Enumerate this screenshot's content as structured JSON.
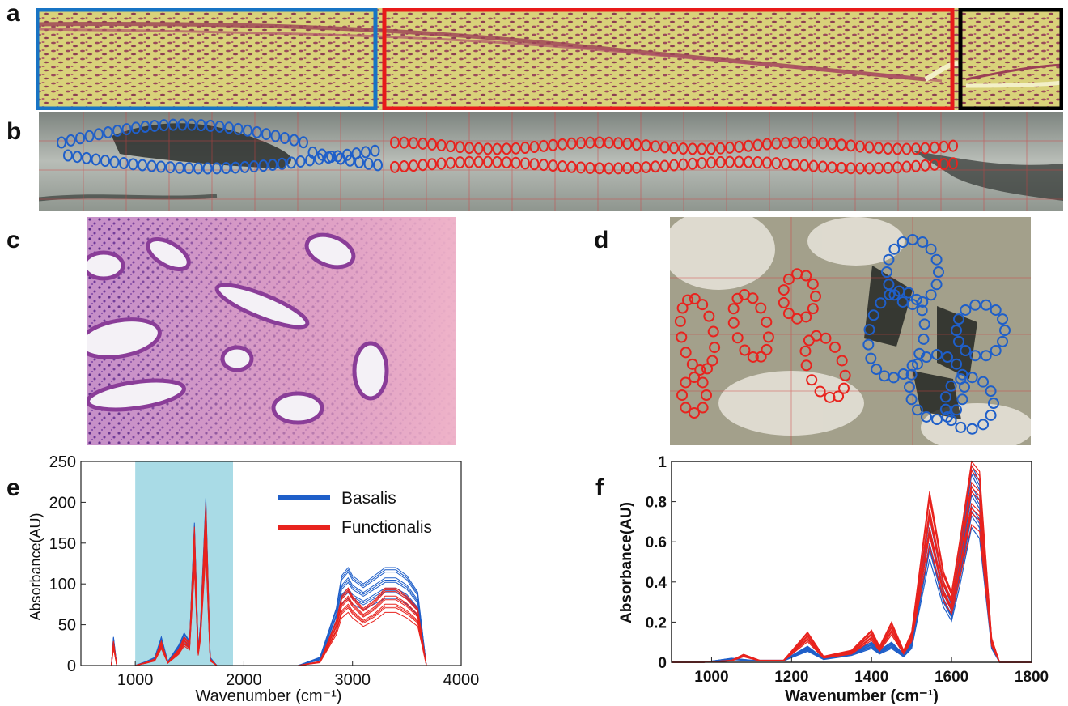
{
  "panels": {
    "a": "a",
    "b": "b",
    "c": "c",
    "d": "d",
    "e": "e",
    "f": "f"
  },
  "colors": {
    "basalis": "#1f5fc9",
    "functionalis": "#e8231e",
    "highlight": "#a9dbe6",
    "box_blue": "#1874c4",
    "box_red": "#e81a1a",
    "box_black": "#000000"
  },
  "chart_data": [
    {
      "panel": "e",
      "type": "line",
      "xlabel": "Wavenumber (cm⁻¹)",
      "ylabel": "Absorbance(AU)",
      "xlim": [
        500,
        4000
      ],
      "ylim": [
        0,
        250
      ],
      "xticks": [
        1000,
        2000,
        3000,
        4000
      ],
      "yticks": [
        0,
        50,
        100,
        150,
        200,
        250
      ],
      "highlight_band": [
        1000,
        1900
      ],
      "legend_position": "top-center",
      "series": [
        {
          "name": "Basalis",
          "color": "#1f5fc9",
          "x": [
            780,
            800,
            830,
            900,
            1000,
            1100,
            1180,
            1240,
            1300,
            1400,
            1450,
            1500,
            1545,
            1580,
            1600,
            1650,
            1690,
            1750,
            1900,
            2500,
            2700,
            2850,
            2900,
            2960,
            3000,
            3100,
            3200,
            3300,
            3400,
            3500,
            3600,
            3680,
            3800
          ],
          "values": [
            0,
            35,
            0,
            0,
            0,
            5,
            10,
            35,
            5,
            25,
            40,
            30,
            175,
            20,
            50,
            205,
            10,
            0,
            0,
            0,
            10,
            70,
            110,
            120,
            110,
            100,
            110,
            120,
            120,
            110,
            90,
            0,
            0
          ]
        },
        {
          "name": "Functionalis",
          "color": "#e8231e",
          "x": [
            780,
            800,
            830,
            900,
            1000,
            1100,
            1180,
            1240,
            1300,
            1400,
            1450,
            1500,
            1545,
            1580,
            1600,
            1650,
            1690,
            1750,
            1900,
            2500,
            2700,
            2850,
            2900,
            2960,
            3000,
            3100,
            3200,
            3300,
            3400,
            3500,
            3600,
            3680,
            3800
          ],
          "values": [
            0,
            30,
            0,
            0,
            0,
            4,
            8,
            30,
            4,
            20,
            35,
            28,
            170,
            18,
            45,
            200,
            8,
            0,
            0,
            0,
            5,
            55,
            85,
            95,
            85,
            70,
            80,
            95,
            95,
            85,
            70,
            0,
            0
          ]
        }
      ]
    },
    {
      "panel": "f",
      "type": "line",
      "xlabel": "Wavenumber (cm⁻¹)",
      "ylabel": "Absorbance(AU)",
      "xlim": [
        900,
        1800
      ],
      "ylim": [
        0,
        1
      ],
      "xticks": [
        1000,
        1200,
        1400,
        1600,
        1800
      ],
      "yticks": [
        0,
        0.2,
        0.4,
        0.6,
        0.8,
        1
      ],
      "series": [
        {
          "name": "",
          "color": "#1f5fc9",
          "x": [
            900,
            980,
            1050,
            1100,
            1180,
            1240,
            1280,
            1350,
            1400,
            1420,
            1450,
            1480,
            1500,
            1545,
            1580,
            1600,
            1620,
            1650,
            1670,
            1700,
            1720,
            1800
          ],
          "values": [
            0,
            0,
            0.02,
            0.01,
            0.01,
            0.08,
            0.02,
            0.05,
            0.1,
            0.06,
            0.1,
            0.04,
            0.1,
            0.75,
            0.4,
            0.3,
            0.55,
            0.98,
            0.9,
            0.1,
            0,
            0
          ]
        },
        {
          "name": "",
          "color": "#e8231e",
          "x": [
            900,
            980,
            1050,
            1080,
            1120,
            1180,
            1240,
            1280,
            1350,
            1400,
            1420,
            1450,
            1480,
            1500,
            1545,
            1580,
            1600,
            1620,
            1650,
            1670,
            1700,
            1720,
            1800
          ],
          "values": [
            0,
            0,
            0.01,
            0.04,
            0.01,
            0.01,
            0.15,
            0.03,
            0.06,
            0.16,
            0.08,
            0.2,
            0.06,
            0.15,
            0.85,
            0.45,
            0.35,
            0.6,
            1.0,
            0.95,
            0.12,
            0,
            0
          ]
        }
      ]
    }
  ]
}
